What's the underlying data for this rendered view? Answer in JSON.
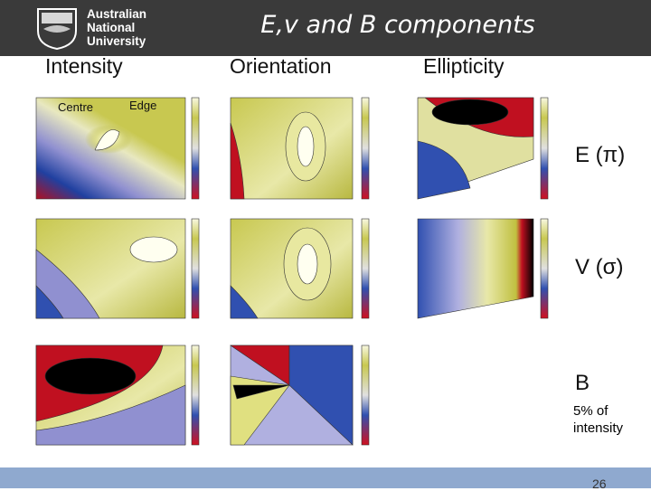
{
  "header": {
    "institution": [
      "Australian",
      "National",
      "University"
    ],
    "title": "E,v and B components"
  },
  "columns": [
    "Intensity",
    "Orientation",
    "Ellipticity"
  ],
  "annotations": {
    "centre": "Centre",
    "edge": "Edge"
  },
  "rows": [
    {
      "label": "E (π)"
    },
    {
      "label": "V (σ)"
    },
    {
      "label": "B",
      "note": "5% of intensity"
    }
  ],
  "page_number": "26"
}
